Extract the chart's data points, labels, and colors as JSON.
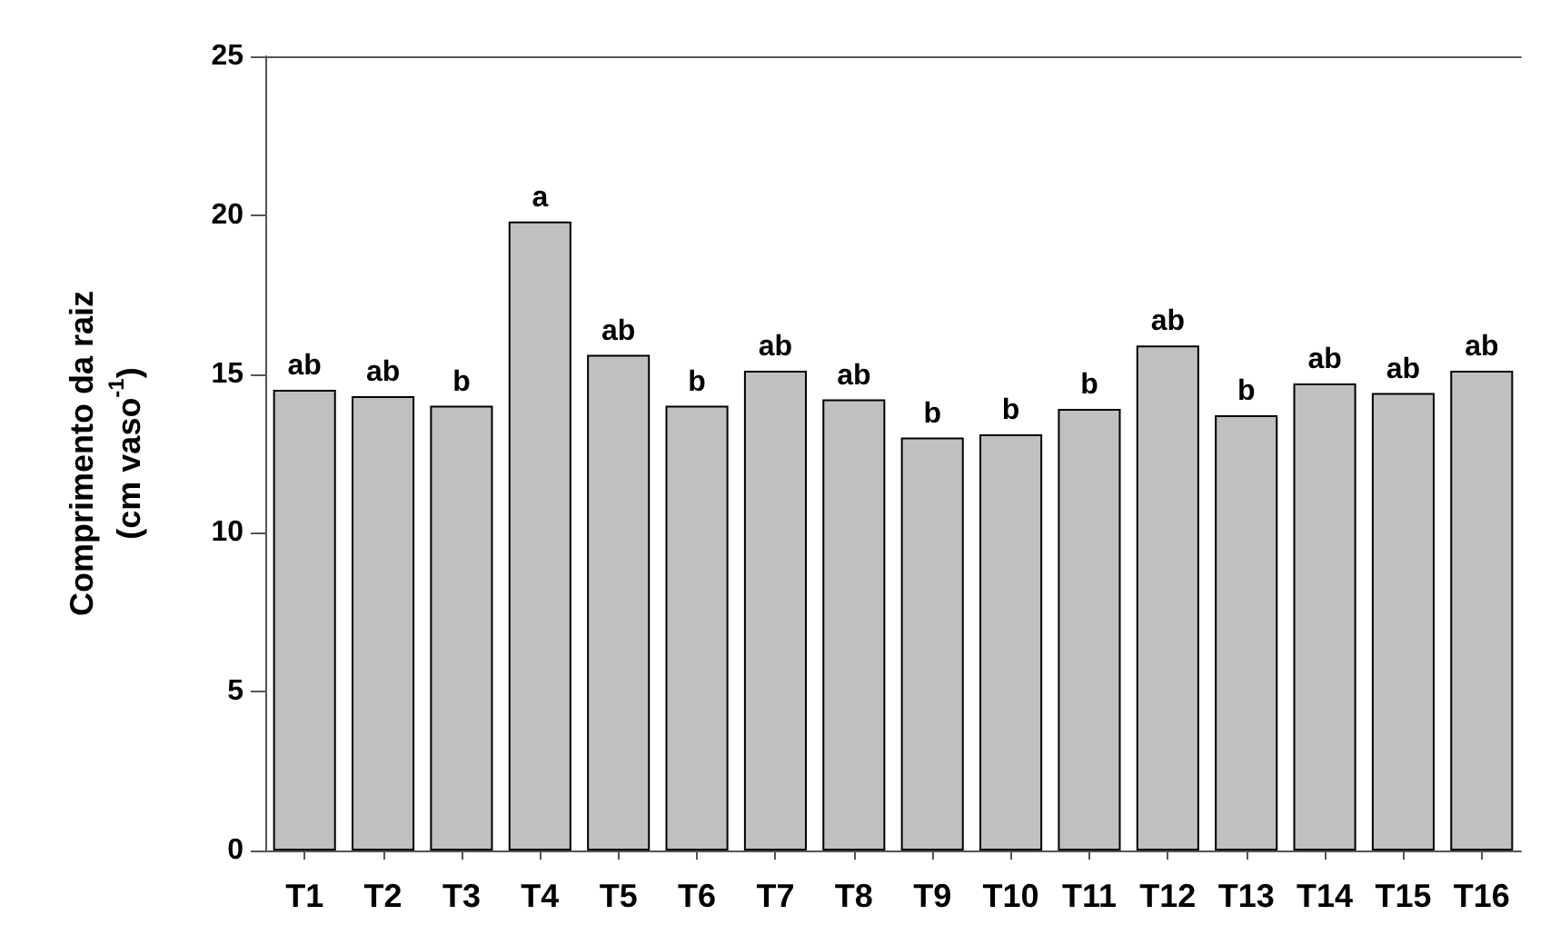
{
  "chart_data": {
    "type": "bar",
    "ylabel": "Comprimento da raiz\n(cm vaso$^{-1}$)",
    "categories": [
      "T1",
      "T2",
      "T3",
      "T4",
      "T5",
      "T6",
      "T7",
      "T8",
      "T9",
      "T10",
      "T11",
      "T12",
      "T13",
      "T14",
      "T15",
      "T16"
    ],
    "values": [
      14.5,
      14.3,
      14.0,
      19.8,
      15.6,
      14.0,
      15.1,
      14.2,
      13.0,
      13.1,
      13.9,
      15.9,
      13.7,
      14.7,
      14.4,
      15.1
    ],
    "value_labels": [
      "ab",
      "ab",
      "b",
      "a",
      "ab",
      "b",
      "ab",
      "ab",
      "b",
      "b",
      "b",
      "ab",
      "b",
      "ab",
      "ab",
      "ab"
    ],
    "color": "#c0c0c0",
    "ylim": [
      0,
      25
    ],
    "yticks": [
      0,
      5,
      10,
      15,
      20,
      25
    ],
    "grid": false
  }
}
